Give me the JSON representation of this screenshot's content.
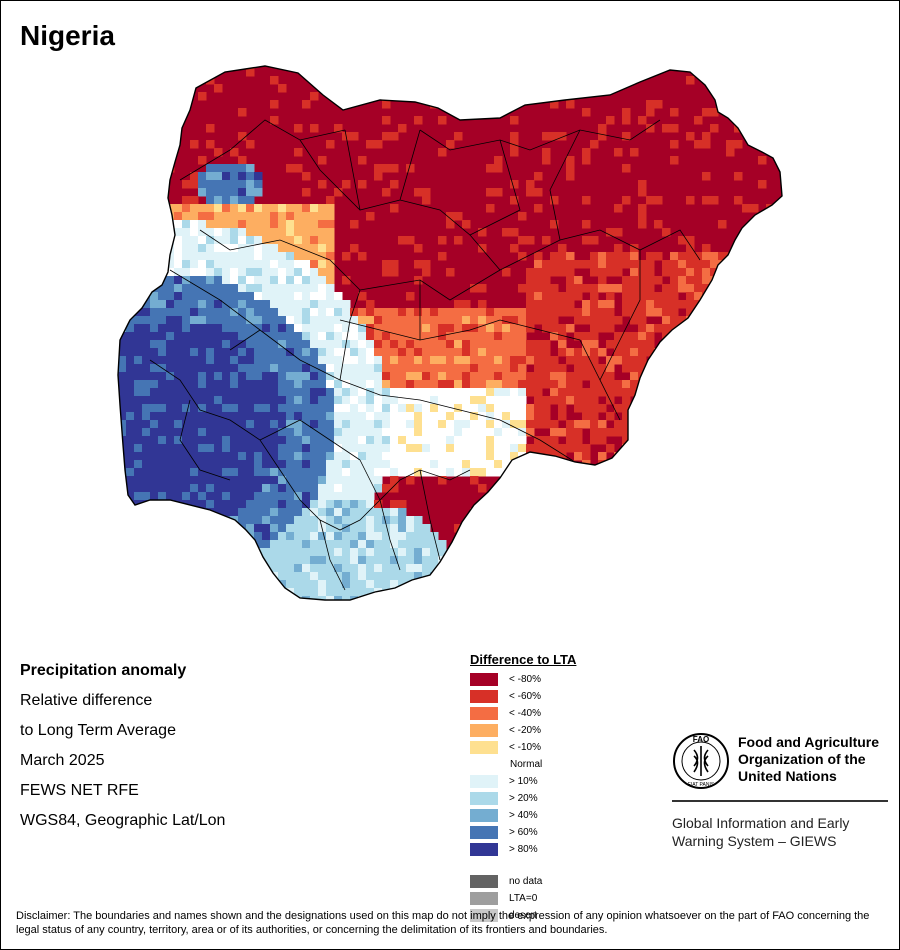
{
  "map_title": "Nigeria",
  "info": {
    "heading": "Precipitation anomaly",
    "line1": "Relative difference",
    "line2": "to Long Term Average",
    "period": "March 2025",
    "source": "FEWS NET RFE",
    "projection": "WGS84, Geographic Lat/Lon"
  },
  "legend": {
    "title": "Difference to LTA",
    "classes": [
      {
        "label": "< -80%",
        "color": "#a50026"
      },
      {
        "label": "< -60%",
        "color": "#d73027"
      },
      {
        "label": "< -40%",
        "color": "#f46d43"
      },
      {
        "label": "< -20%",
        "color": "#fdae61"
      },
      {
        "label": "< -10%",
        "color": "#fee090"
      },
      {
        "label": "Normal",
        "color": "#ffffff"
      },
      {
        "label": "> 10%",
        "color": "#e0f3f8"
      },
      {
        "label": "> 20%",
        "color": "#abd9e9"
      },
      {
        "label": "> 40%",
        "color": "#74add1"
      },
      {
        "label": "> 60%",
        "color": "#4575b4"
      },
      {
        "label": "> 80%",
        "color": "#313695"
      }
    ],
    "extra": [
      {
        "label": "no data",
        "color": "#636363"
      },
      {
        "label": "LTA=0",
        "color": "#9e9e9e"
      },
      {
        "label": "desert",
        "color": "#c8c8c8"
      }
    ]
  },
  "org": {
    "name_line1": "Food and Agriculture",
    "name_line2": "Organization of the",
    "name_line3": "United Nations",
    "system_line1": "Global Information and Early",
    "system_line2": "Warning System – GIEWS",
    "logo_text": "FAO",
    "logo_motto": "FIAT PANIS"
  },
  "disclaimer": "Disclaimer: The boundaries and names shown and the designations used on this map do not imply the expression of any opinion whatsoever on the part of FAO concerning the legal status of any country, territory, area or of its authorities, or concerning the delimitation of its frontiers and boundaries."
}
